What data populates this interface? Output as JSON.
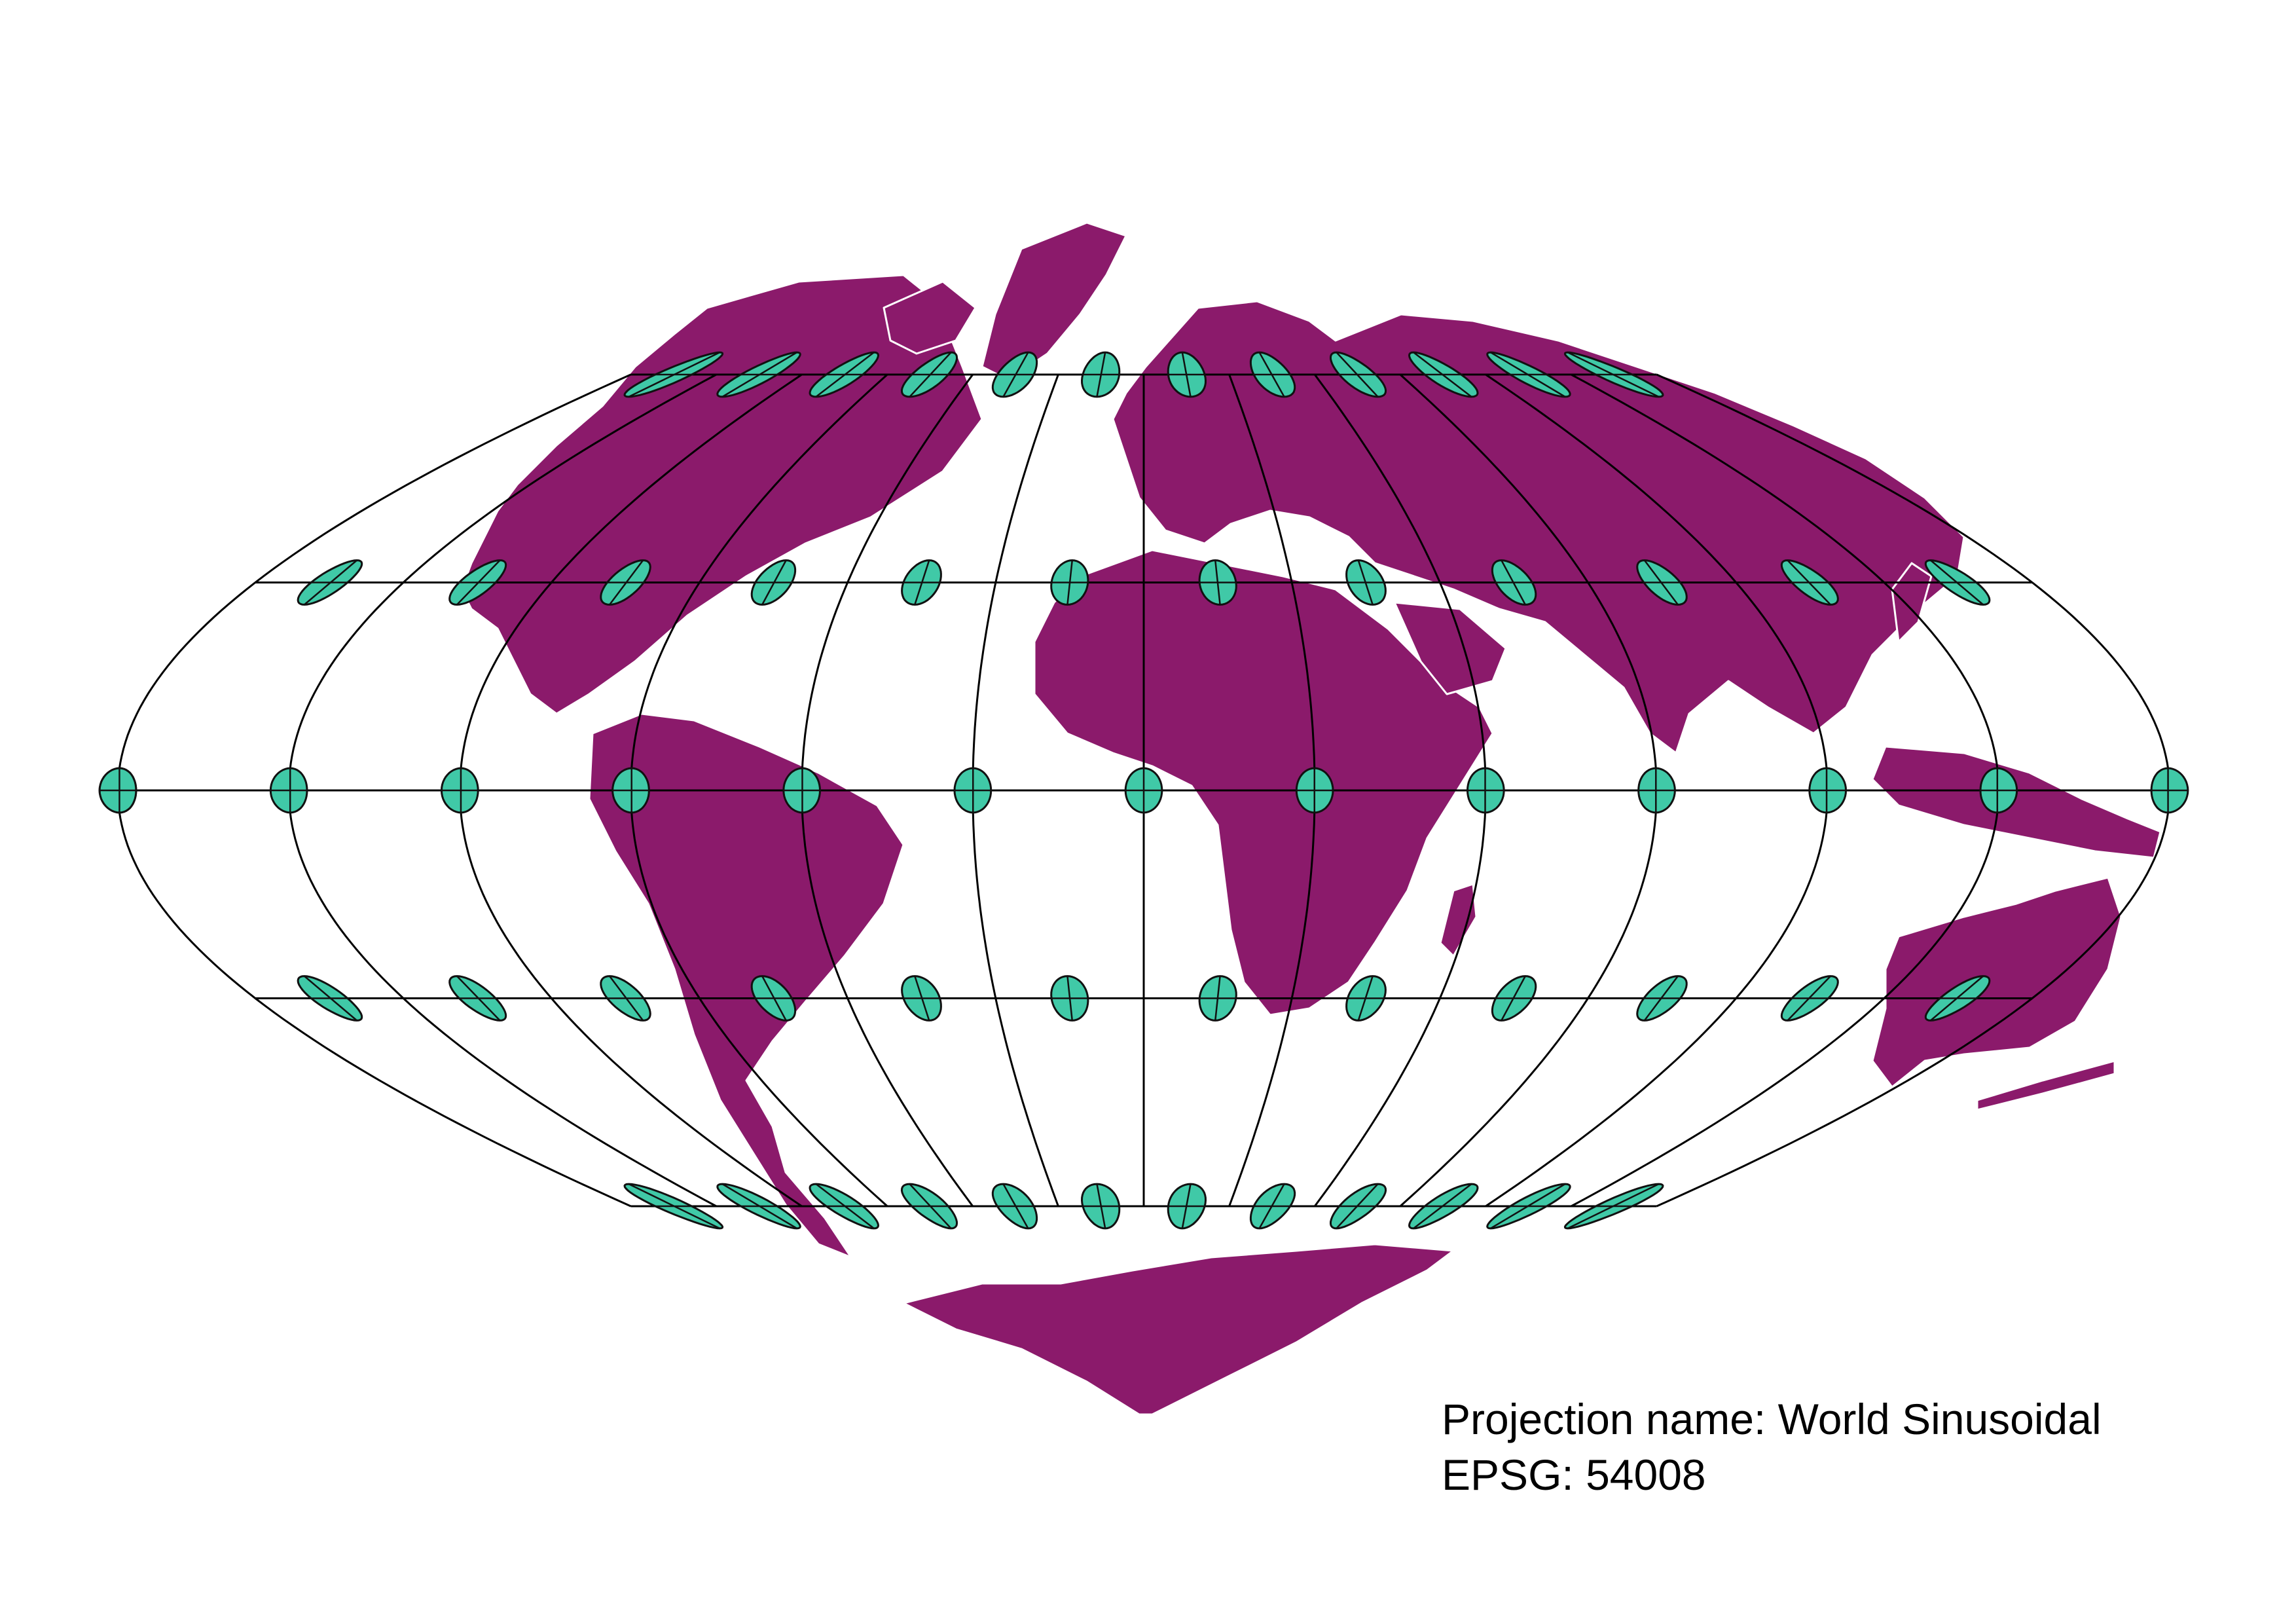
{
  "map": {
    "colors": {
      "background": "#ffffff",
      "land": "#8b1a6b",
      "borders": "#ffffff",
      "graticule": "#000000",
      "indicatrix": "#40c9a7"
    },
    "graticule_latitudes": [
      -60,
      -30,
      0,
      30,
      60
    ],
    "graticule_longitudes": [
      -150,
      -120,
      -90,
      -60,
      -30,
      0,
      30,
      60,
      90,
      120,
      150
    ],
    "indicatrix": {
      "latitudes": [
        -60,
        -30,
        0,
        30,
        60
      ],
      "longitudes": [
        -165,
        -135,
        -105,
        -75,
        -45,
        -15,
        15,
        45,
        75,
        105,
        135,
        165
      ],
      "row_extra_longitudes_at_0": [
        -180,
        180
      ]
    }
  },
  "caption": {
    "projection_line": "Projection name: World Sinusoidal",
    "epsg_line": "EPSG: 54008"
  }
}
